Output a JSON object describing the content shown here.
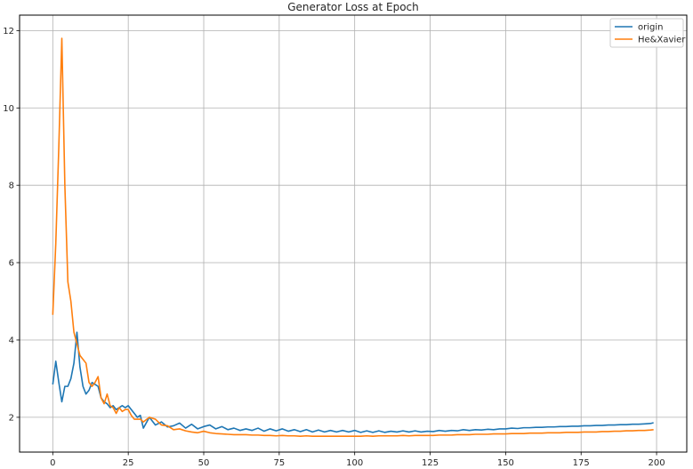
{
  "chart_data": {
    "type": "line",
    "title": "Generator Loss at Epoch",
    "xlabel": "",
    "ylabel": "",
    "xlim": [
      -11,
      210
    ],
    "ylim": [
      1.1,
      12.4
    ],
    "xticks": [
      0,
      25,
      50,
      75,
      100,
      125,
      150,
      175,
      200
    ],
    "yticks": [
      2,
      4,
      6,
      8,
      10,
      12
    ],
    "grid": true,
    "legend_position": "top-right",
    "series": [
      {
        "name": "origin",
        "color": "#1f77b4",
        "x": [
          0,
          1,
          2,
          3,
          4,
          5,
          6,
          7,
          8,
          9,
          10,
          11,
          12,
          13,
          14,
          15,
          16,
          17,
          18,
          19,
          20,
          21,
          22,
          23,
          24,
          25,
          26,
          27,
          28,
          29,
          30,
          32,
          34,
          36,
          38,
          40,
          42,
          44,
          46,
          48,
          50,
          52,
          54,
          56,
          58,
          60,
          62,
          64,
          66,
          68,
          70,
          72,
          74,
          76,
          78,
          80,
          82,
          84,
          86,
          88,
          90,
          92,
          94,
          96,
          98,
          100,
          102,
          104,
          106,
          108,
          110,
          112,
          114,
          116,
          118,
          120,
          122,
          124,
          126,
          128,
          130,
          132,
          134,
          136,
          138,
          140,
          142,
          144,
          146,
          148,
          150,
          152,
          154,
          156,
          158,
          160,
          162,
          164,
          166,
          168,
          170,
          172,
          174,
          176,
          178,
          180,
          182,
          184,
          186,
          188,
          190,
          192,
          194,
          196,
          198,
          199
        ],
        "y": [
          2.85,
          3.45,
          2.9,
          2.4,
          2.8,
          2.8,
          3.0,
          3.4,
          4.2,
          3.3,
          2.8,
          2.6,
          2.7,
          2.9,
          2.85,
          2.8,
          2.5,
          2.4,
          2.35,
          2.25,
          2.3,
          2.2,
          2.25,
          2.3,
          2.25,
          2.3,
          2.2,
          2.1,
          2.0,
          2.05,
          1.72,
          2.0,
          1.8,
          1.88,
          1.75,
          1.78,
          1.85,
          1.72,
          1.82,
          1.7,
          1.76,
          1.8,
          1.7,
          1.76,
          1.68,
          1.72,
          1.66,
          1.7,
          1.66,
          1.72,
          1.64,
          1.7,
          1.65,
          1.7,
          1.64,
          1.68,
          1.63,
          1.68,
          1.62,
          1.67,
          1.62,
          1.66,
          1.62,
          1.66,
          1.62,
          1.66,
          1.61,
          1.65,
          1.61,
          1.65,
          1.61,
          1.64,
          1.62,
          1.65,
          1.62,
          1.65,
          1.62,
          1.64,
          1.63,
          1.66,
          1.64,
          1.66,
          1.65,
          1.68,
          1.66,
          1.68,
          1.67,
          1.69,
          1.68,
          1.7,
          1.7,
          1.72,
          1.71,
          1.73,
          1.73,
          1.74,
          1.74,
          1.75,
          1.75,
          1.76,
          1.76,
          1.77,
          1.77,
          1.78,
          1.78,
          1.79,
          1.79,
          1.8,
          1.8,
          1.81,
          1.81,
          1.82,
          1.82,
          1.83,
          1.84,
          1.86
        ]
      },
      {
        "name": "He&Xavier",
        "color": "#ff7f0e",
        "x": [
          0,
          1,
          2,
          3,
          4,
          5,
          6,
          7,
          8,
          9,
          10,
          11,
          12,
          13,
          14,
          15,
          16,
          17,
          18,
          19,
          20,
          21,
          22,
          23,
          24,
          25,
          26,
          27,
          28,
          29,
          30,
          32,
          34,
          36,
          38,
          40,
          42,
          44,
          46,
          48,
          50,
          52,
          54,
          56,
          58,
          60,
          62,
          64,
          66,
          68,
          70,
          72,
          74,
          76,
          78,
          80,
          82,
          84,
          86,
          88,
          90,
          92,
          94,
          96,
          98,
          100,
          102,
          104,
          106,
          108,
          110,
          112,
          114,
          116,
          118,
          120,
          122,
          124,
          126,
          128,
          130,
          132,
          134,
          136,
          138,
          140,
          142,
          144,
          146,
          148,
          150,
          152,
          154,
          156,
          158,
          160,
          162,
          164,
          166,
          168,
          170,
          172,
          174,
          176,
          178,
          180,
          182,
          184,
          186,
          188,
          190,
          192,
          194,
          196,
          198,
          199
        ],
        "y": [
          4.65,
          6.5,
          9.0,
          11.8,
          8.0,
          5.5,
          5.0,
          4.2,
          3.9,
          3.6,
          3.5,
          3.4,
          2.9,
          2.8,
          2.9,
          3.05,
          2.5,
          2.35,
          2.6,
          2.3,
          2.25,
          2.1,
          2.25,
          2.15,
          2.2,
          2.2,
          2.05,
          1.95,
          1.95,
          1.95,
          1.88,
          2.0,
          1.95,
          1.8,
          1.78,
          1.68,
          1.7,
          1.65,
          1.62,
          1.6,
          1.64,
          1.6,
          1.58,
          1.57,
          1.56,
          1.55,
          1.55,
          1.55,
          1.54,
          1.54,
          1.53,
          1.53,
          1.52,
          1.53,
          1.52,
          1.52,
          1.51,
          1.52,
          1.51,
          1.51,
          1.51,
          1.51,
          1.51,
          1.51,
          1.51,
          1.51,
          1.51,
          1.52,
          1.51,
          1.52,
          1.52,
          1.52,
          1.52,
          1.53,
          1.52,
          1.53,
          1.53,
          1.53,
          1.53,
          1.54,
          1.54,
          1.54,
          1.55,
          1.55,
          1.55,
          1.56,
          1.56,
          1.56,
          1.57,
          1.57,
          1.57,
          1.58,
          1.58,
          1.58,
          1.59,
          1.59,
          1.59,
          1.6,
          1.6,
          1.6,
          1.61,
          1.61,
          1.61,
          1.62,
          1.62,
          1.62,
          1.63,
          1.63,
          1.64,
          1.64,
          1.65,
          1.65,
          1.66,
          1.66,
          1.67,
          1.68
        ]
      }
    ]
  }
}
